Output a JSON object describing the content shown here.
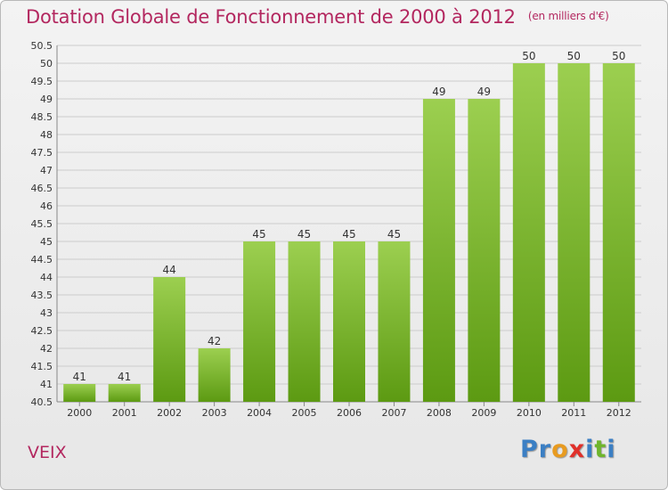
{
  "header": {
    "title": "Dotation Globale de Fonctionnement de 2000 à 2012",
    "unit": "(en milliers d'€)"
  },
  "footer": {
    "commune": "VEIX",
    "logo_letters": [
      "P",
      "r",
      "o",
      "x",
      "i",
      "t",
      "i"
    ]
  },
  "colors": {
    "title": "#b3275f",
    "bar_light": "#9ccf50",
    "bar_dark": "#5c9a12",
    "grid": "#cccccc",
    "logo": [
      "#3b7fc4",
      "#3b7fc4",
      "#e89b20",
      "#e0302a",
      "#3b7fc4",
      "#6fb52c",
      "#3b7fc4"
    ]
  },
  "chart_data": {
    "type": "bar",
    "categories": [
      "2000",
      "2001",
      "2002",
      "2003",
      "2004",
      "2005",
      "2006",
      "2007",
      "2008",
      "2009",
      "2010",
      "2011",
      "2012"
    ],
    "values": [
      41,
      41,
      44,
      42,
      45,
      45,
      45,
      45,
      49,
      49,
      50,
      50,
      50
    ],
    "data_labels": [
      "41",
      "41",
      "44",
      "42",
      "45",
      "45",
      "45",
      "45",
      "49",
      "49",
      "50",
      "50",
      "50"
    ],
    "ylim": [
      40.5,
      50.5
    ],
    "yticks": [
      "40.5",
      "41",
      "41.5",
      "42",
      "42.5",
      "43",
      "43.5",
      "44",
      "44.5",
      "45",
      "45.5",
      "46",
      "46.5",
      "47",
      "47.5",
      "48",
      "48.5",
      "49",
      "49.5",
      "50",
      "50.5"
    ],
    "grid": true,
    "title": "Dotation Globale de Fonctionnement de 2000 à 2012",
    "xlabel": "",
    "ylabel": ""
  }
}
